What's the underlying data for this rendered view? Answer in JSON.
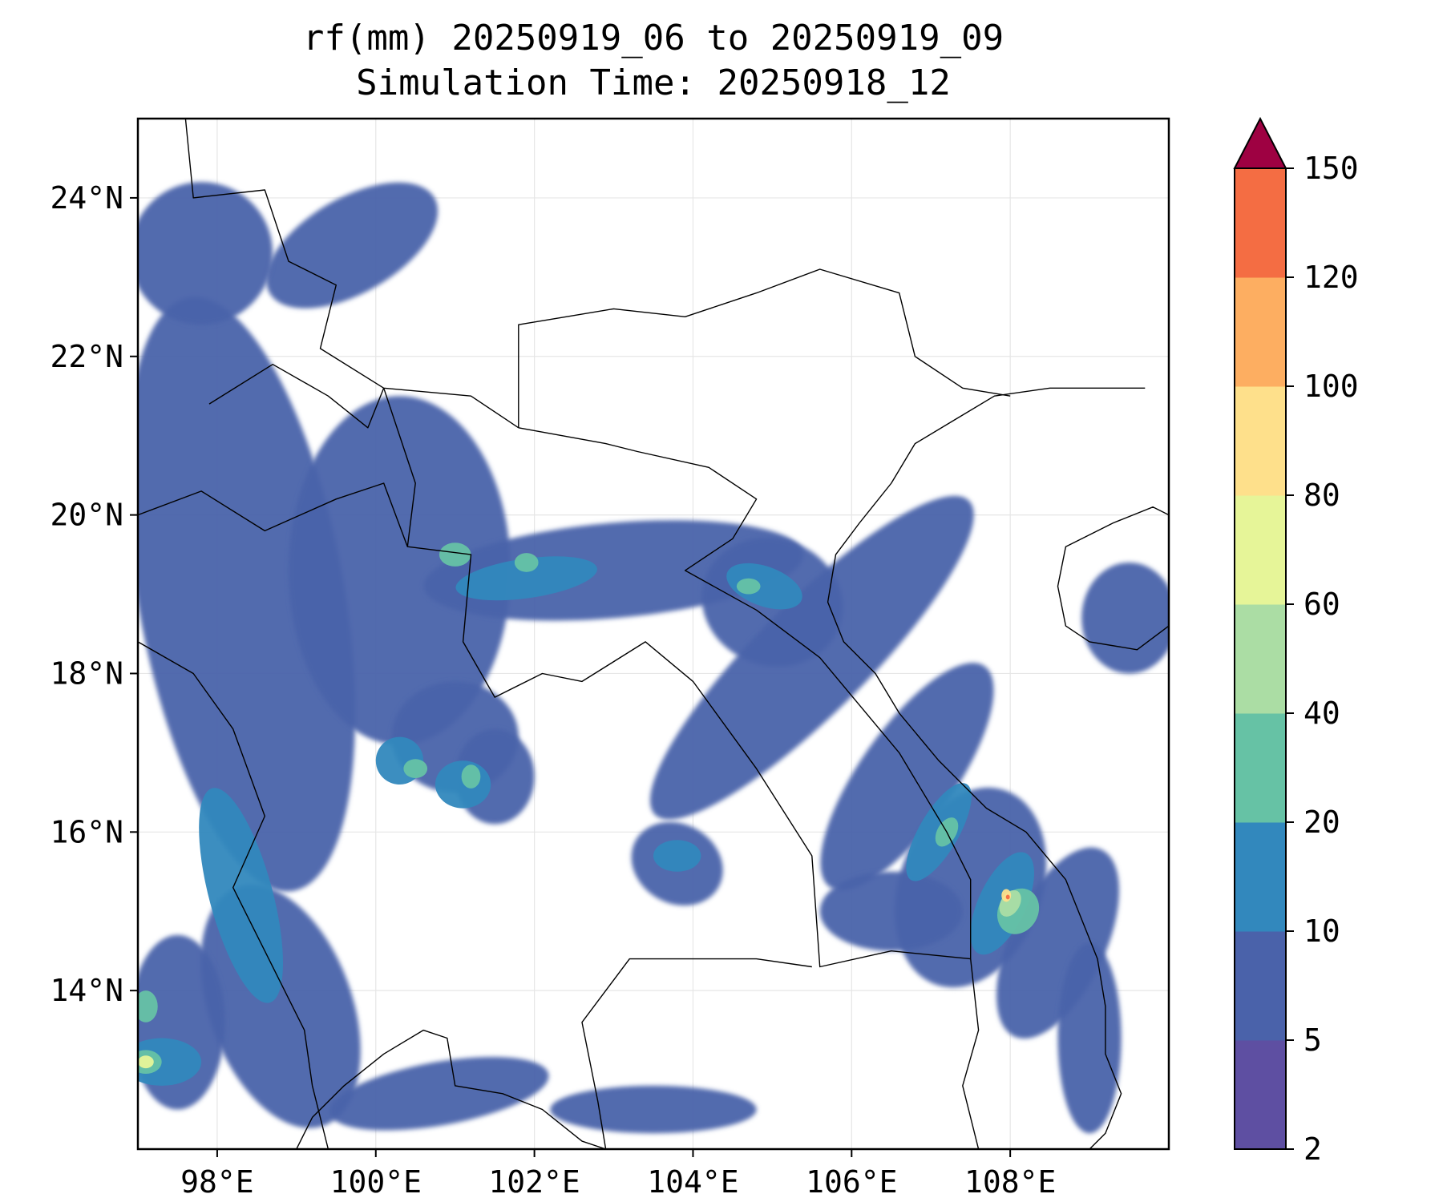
{
  "map": {
    "title_line1": "rf(mm) 20250919_06 to 20250919_09",
    "title_line2": "Simulation Time: 20250918_12",
    "extent": {
      "lon_min": 97.0,
      "lon_max": 110.0,
      "lat_min": 12.0,
      "lat_max": 25.0
    },
    "x_ticks": [
      {
        "value": 98,
        "label": "98°E"
      },
      {
        "value": 100,
        "label": "100°E"
      },
      {
        "value": 102,
        "label": "102°E"
      },
      {
        "value": 104,
        "label": "104°E"
      },
      {
        "value": 106,
        "label": "106°E"
      },
      {
        "value": 108,
        "label": "108°E"
      }
    ],
    "y_ticks": [
      {
        "value": 14,
        "label": "14°N"
      },
      {
        "value": 16,
        "label": "16°N"
      },
      {
        "value": 18,
        "label": "18°N"
      },
      {
        "value": 20,
        "label": "20°N"
      },
      {
        "value": 22,
        "label": "22°N"
      },
      {
        "value": 24,
        "label": "24°N"
      }
    ],
    "gridlines": true,
    "rainfall_bands": [
      {
        "level": 1,
        "lon": 98.3,
        "lat": 19.0,
        "rlon": 1.3,
        "rlat": 3.8,
        "angle": -10
      },
      {
        "level": 1,
        "lon": 100.3,
        "lat": 19.3,
        "rlon": 1.4,
        "rlat": 2.2,
        "angle": 0
      },
      {
        "level": 1,
        "lon": 103.0,
        "lat": 19.3,
        "rlon": 2.4,
        "rlat": 0.6,
        "angle": -5
      },
      {
        "level": 1,
        "lon": 105.0,
        "lat": 18.9,
        "rlon": 0.9,
        "rlat": 0.8,
        "angle": 20
      },
      {
        "level": 1,
        "lon": 105.5,
        "lat": 18.2,
        "rlon": 0.7,
        "rlat": 2.8,
        "angle": 45
      },
      {
        "level": 1,
        "lon": 106.7,
        "lat": 16.7,
        "rlon": 0.6,
        "rlat": 1.7,
        "angle": 35
      },
      {
        "level": 1,
        "lon": 107.5,
        "lat": 15.3,
        "rlon": 0.9,
        "rlat": 1.3,
        "angle": 20
      },
      {
        "level": 1,
        "lon": 108.6,
        "lat": 14.6,
        "rlon": 0.6,
        "rlat": 1.3,
        "angle": 25
      },
      {
        "level": 1,
        "lon": 109.0,
        "lat": 13.4,
        "rlon": 0.4,
        "rlat": 1.2,
        "angle": 0
      },
      {
        "level": 1,
        "lon": 98.8,
        "lat": 13.8,
        "rlon": 0.9,
        "rlat": 1.6,
        "angle": -20
      },
      {
        "level": 1,
        "lon": 97.5,
        "lat": 13.6,
        "rlon": 0.6,
        "rlat": 1.1,
        "angle": 0
      },
      {
        "level": 1,
        "lon": 101.0,
        "lat": 17.2,
        "rlon": 0.8,
        "rlat": 0.7,
        "angle": 0
      },
      {
        "level": 1,
        "lon": 99.7,
        "lat": 23.4,
        "rlon": 1.2,
        "rlat": 0.6,
        "angle": -30
      },
      {
        "level": 1,
        "lon": 97.8,
        "lat": 23.3,
        "rlon": 0.9,
        "rlat": 0.9,
        "angle": 0
      },
      {
        "level": 1,
        "lon": 109.5,
        "lat": 18.7,
        "rlon": 0.6,
        "rlat": 0.7,
        "angle": 0
      },
      {
        "level": 1,
        "lon": 103.8,
        "lat": 15.6,
        "rlon": 0.6,
        "rlat": 0.5,
        "angle": 30
      },
      {
        "level": 1,
        "lon": 106.5,
        "lat": 15.0,
        "rlon": 0.9,
        "rlat": 0.5,
        "angle": 0
      },
      {
        "level": 1,
        "lon": 101.5,
        "lat": 16.7,
        "rlon": 0.5,
        "rlat": 0.6,
        "angle": 0
      },
      {
        "level": 1,
        "lon": 100.8,
        "lat": 12.7,
        "rlon": 1.4,
        "rlat": 0.4,
        "angle": -10
      },
      {
        "level": 1,
        "lon": 103.5,
        "lat": 12.5,
        "rlon": 1.3,
        "rlat": 0.3,
        "angle": 0
      },
      {
        "level": 2,
        "lon": 98.3,
        "lat": 15.2,
        "rlon": 0.4,
        "rlat": 1.4,
        "angle": -15
      },
      {
        "level": 2,
        "lon": 101.9,
        "lat": 19.2,
        "rlon": 0.9,
        "rlat": 0.25,
        "angle": -8
      },
      {
        "level": 2,
        "lon": 104.9,
        "lat": 19.1,
        "rlon": 0.5,
        "rlat": 0.25,
        "angle": 20
      },
      {
        "level": 2,
        "lon": 107.1,
        "lat": 16.0,
        "rlon": 0.25,
        "rlat": 0.7,
        "angle": 30
      },
      {
        "level": 2,
        "lon": 107.9,
        "lat": 15.1,
        "rlon": 0.3,
        "rlat": 0.7,
        "angle": 25
      },
      {
        "level": 2,
        "lon": 97.3,
        "lat": 13.1,
        "rlon": 0.5,
        "rlat": 0.3,
        "angle": 0
      },
      {
        "level": 2,
        "lon": 101.1,
        "lat": 16.6,
        "rlon": 0.35,
        "rlat": 0.3,
        "angle": 0
      },
      {
        "level": 2,
        "lon": 103.8,
        "lat": 15.7,
        "rlon": 0.3,
        "rlat": 0.2,
        "angle": 0
      },
      {
        "level": 2,
        "lon": 100.3,
        "lat": 16.9,
        "rlon": 0.3,
        "rlat": 0.3,
        "angle": 30
      },
      {
        "level": 3,
        "lon": 101.0,
        "lat": 19.5,
        "rlon": 0.2,
        "rlat": 0.15,
        "angle": 0
      },
      {
        "level": 3,
        "lon": 101.9,
        "lat": 19.4,
        "rlon": 0.15,
        "rlat": 0.12,
        "angle": 0
      },
      {
        "level": 3,
        "lon": 104.7,
        "lat": 19.1,
        "rlon": 0.15,
        "rlat": 0.1,
        "angle": 0
      },
      {
        "level": 3,
        "lon": 107.2,
        "lat": 16.0,
        "rlon": 0.12,
        "rlat": 0.2,
        "angle": 30
      },
      {
        "level": 3,
        "lon": 108.1,
        "lat": 15.0,
        "rlon": 0.25,
        "rlat": 0.3,
        "angle": 30
      },
      {
        "level": 3,
        "lon": 97.1,
        "lat": 13.1,
        "rlon": 0.2,
        "rlat": 0.15,
        "angle": 0
      },
      {
        "level": 3,
        "lon": 97.1,
        "lat": 13.8,
        "rlon": 0.15,
        "rlat": 0.2,
        "angle": 0
      },
      {
        "level": 3,
        "lon": 101.2,
        "lat": 16.7,
        "rlon": 0.12,
        "rlat": 0.15,
        "angle": 0
      },
      {
        "level": 3,
        "lon": 100.5,
        "lat": 16.8,
        "rlon": 0.15,
        "rlat": 0.12,
        "angle": 0
      },
      {
        "level": 4,
        "lon": 108.0,
        "lat": 15.1,
        "rlon": 0.12,
        "rlat": 0.18,
        "angle": 30
      },
      {
        "level": 5,
        "lon": 97.1,
        "lat": 13.1,
        "rlon": 0.1,
        "rlat": 0.08,
        "angle": 0
      },
      {
        "level": 6,
        "lon": 107.95,
        "lat": 15.2,
        "rlon": 0.06,
        "rlat": 0.08,
        "angle": 0
      },
      {
        "level": 8,
        "lon": 107.97,
        "lat": 15.18,
        "rlon": 0.025,
        "rlat": 0.03,
        "angle": 0
      }
    ],
    "coastline_lonlat": [
      [
        109.7,
        21.6
      ],
      [
        108.5,
        21.6
      ],
      [
        107.8,
        21.5
      ],
      [
        107.3,
        21.2
      ],
      [
        106.8,
        20.9
      ],
      [
        106.5,
        20.4
      ],
      [
        106.1,
        19.9
      ],
      [
        105.8,
        19.5
      ],
      [
        105.7,
        18.9
      ],
      [
        105.9,
        18.4
      ],
      [
        106.3,
        18.0
      ],
      [
        106.6,
        17.5
      ],
      [
        107.1,
        16.9
      ],
      [
        107.7,
        16.3
      ],
      [
        108.2,
        16.0
      ],
      [
        108.7,
        15.4
      ],
      [
        108.9,
        14.9
      ],
      [
        109.1,
        14.4
      ],
      [
        109.2,
        13.8
      ],
      [
        109.2,
        13.2
      ],
      [
        109.4,
        12.7
      ],
      [
        109.2,
        12.2
      ],
      [
        109.0,
        12.0
      ]
    ],
    "hainan_lonlat": [
      [
        108.6,
        19.1
      ],
      [
        108.7,
        19.6
      ],
      [
        109.3,
        19.9
      ],
      [
        109.8,
        20.1
      ],
      [
        110.0,
        20.0
      ],
      [
        110.0,
        18.6
      ],
      [
        109.6,
        18.3
      ],
      [
        109.0,
        18.4
      ],
      [
        108.7,
        18.6
      ],
      [
        108.6,
        19.1
      ]
    ],
    "thai_gulf_coast_lonlat": [
      [
        99.0,
        12.0
      ],
      [
        99.2,
        12.4
      ],
      [
        99.6,
        12.8
      ],
      [
        100.1,
        13.2
      ],
      [
        100.6,
        13.5
      ],
      [
        100.9,
        13.4
      ],
      [
        101.0,
        12.8
      ],
      [
        101.6,
        12.7
      ],
      [
        102.1,
        12.5
      ],
      [
        102.6,
        12.1
      ],
      [
        102.9,
        12.0
      ]
    ],
    "borders_lonlat": [
      [
        [
          97.6,
          25.0
        ],
        [
          97.7,
          24.0
        ],
        [
          98.6,
          24.1
        ],
        [
          98.9,
          23.2
        ],
        [
          99.5,
          22.9
        ],
        [
          99.3,
          22.1
        ],
        [
          100.1,
          21.6
        ],
        [
          101.2,
          21.5
        ],
        [
          101.8,
          21.1
        ]
      ],
      [
        [
          100.1,
          21.6
        ],
        [
          100.5,
          20.4
        ],
        [
          100.4,
          19.6
        ],
        [
          101.2,
          19.5
        ],
        [
          101.1,
          18.4
        ],
        [
          101.5,
          17.7
        ],
        [
          102.1,
          18.0
        ],
        [
          102.6,
          17.9
        ],
        [
          103.4,
          18.4
        ],
        [
          104.0,
          17.9
        ],
        [
          104.8,
          16.8
        ],
        [
          105.5,
          15.7
        ],
        [
          105.6,
          14.3
        ],
        [
          106.5,
          14.5
        ],
        [
          107.5,
          14.4
        ]
      ],
      [
        [
          101.8,
          21.1
        ],
        [
          101.8,
          22.4
        ],
        [
          102.4,
          22.5
        ],
        [
          103.0,
          22.6
        ],
        [
          103.9,
          22.5
        ],
        [
          104.8,
          22.8
        ],
        [
          105.6,
          23.1
        ],
        [
          106.6,
          22.8
        ],
        [
          106.8,
          22.0
        ],
        [
          107.4,
          21.6
        ],
        [
          108.0,
          21.5
        ]
      ],
      [
        [
          101.8,
          21.1
        ],
        [
          102.9,
          20.9
        ],
        [
          103.3,
          20.8
        ],
        [
          104.2,
          20.6
        ],
        [
          104.8,
          20.2
        ],
        [
          104.5,
          19.7
        ],
        [
          103.9,
          19.3
        ],
        [
          104.8,
          18.8
        ],
        [
          105.6,
          18.2
        ],
        [
          106.6,
          17.0
        ],
        [
          107.2,
          16.0
        ],
        [
          107.5,
          15.4
        ],
        [
          107.5,
          14.4
        ]
      ],
      [
        [
          107.5,
          14.4
        ],
        [
          107.6,
          13.5
        ],
        [
          107.4,
          12.8
        ],
        [
          107.6,
          12.0
        ]
      ],
      [
        [
          102.9,
          12.0
        ],
        [
          102.8,
          12.6
        ],
        [
          102.6,
          13.6
        ],
        [
          103.2,
          14.4
        ],
        [
          104.8,
          14.4
        ],
        [
          105.5,
          14.3
        ]
      ],
      [
        [
          97.0,
          18.4
        ],
        [
          97.7,
          18.0
        ],
        [
          98.2,
          17.3
        ],
        [
          98.6,
          16.2
        ],
        [
          98.2,
          15.3
        ],
        [
          98.6,
          14.5
        ],
        [
          99.1,
          13.5
        ],
        [
          99.2,
          12.8
        ],
        [
          99.4,
          12.0
        ]
      ],
      [
        [
          97.9,
          21.4
        ],
        [
          98.7,
          21.9
        ],
        [
          99.4,
          21.5
        ],
        [
          99.9,
          21.1
        ],
        [
          100.1,
          21.6
        ]
      ],
      [
        [
          97.0,
          20.0
        ],
        [
          97.8,
          20.3
        ],
        [
          98.6,
          19.8
        ],
        [
          99.5,
          20.2
        ],
        [
          100.1,
          20.4
        ],
        [
          100.4,
          19.6
        ]
      ]
    ],
    "colorbar": {
      "levels": [
        {
          "value": 2,
          "label": "2"
        },
        {
          "value": 5,
          "label": "5"
        },
        {
          "value": 10,
          "label": "10"
        },
        {
          "value": 20,
          "label": "20"
        },
        {
          "value": 40,
          "label": "40"
        },
        {
          "value": 60,
          "label": "60"
        },
        {
          "value": 80,
          "label": "80"
        },
        {
          "value": 100,
          "label": "100"
        },
        {
          "value": 120,
          "label": "120"
        },
        {
          "value": 150,
          "label": "150"
        }
      ],
      "colors": [
        "#5e4fa2",
        "#4a62aa",
        "#3288bd",
        "#66c2a5",
        "#abdda4",
        "#e6f598",
        "#fee08b",
        "#fdae61",
        "#f46d43",
        "#d53e4f"
      ],
      "extend_max_color": "#9e0142",
      "extend": "max"
    },
    "colors": {
      "coastline": "#000000",
      "border": "#000000",
      "gridline": "#e6e6e6"
    }
  }
}
